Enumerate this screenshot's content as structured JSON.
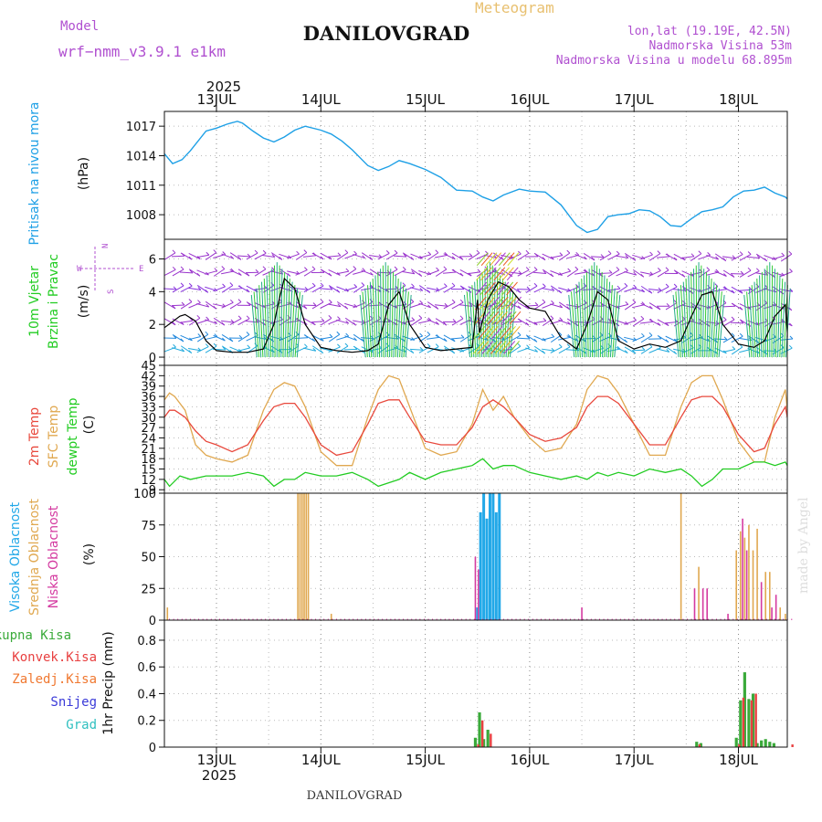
{
  "header": {
    "model_label": "Model",
    "model_name": "wrf−nmm_v3.9.1 e1km",
    "product": "Meteogram",
    "station": "DANILOVGRAD",
    "lonlat": "lon,lat (19.19E, 42.5N)",
    "elevation": "Nadmorska Visina 53m",
    "model_elevation": "Nadmorska Visina u modelu 68.895m",
    "year_top": "2025",
    "year_bottom": "2025",
    "footer_station": "DANILOVGRAD",
    "watermark": "made by Angel"
  },
  "colors": {
    "pressure": "#1ea0e6",
    "t2m": "#e8483c",
    "sfc": "#e0a850",
    "dewpt": "#22cc22",
    "high_cloud": "#22a8e8",
    "mid_cloud": "#e0a850",
    "low_cloud": "#d43aa0",
    "total_precip": "#3aaa3a",
    "conv_precip": "#e84040",
    "frozen_precip": "#f07830",
    "snow": "#3a3ad8",
    "hail": "#30c0c0",
    "wind_speed": "#000000",
    "wind_gust": "#e84040"
  },
  "panel_labels": {
    "pressure": [
      "Pritisak na nivou mora",
      "(hPa)"
    ],
    "wind": [
      "10m Vjetar",
      "Brzina i Pravac",
      "(m/s)"
    ],
    "temp": [
      "2m Temp",
      "SFC Temp",
      "dewpt Temp",
      "(C)"
    ],
    "cloud": [
      "Visoka Oblacnost",
      "Srednja Oblacnost",
      "Niska Oblacnost",
      "(%)"
    ],
    "precip_unit": "1hr Precip (mm)",
    "precip_legend": [
      "Ukupna Kisa",
      "Konvek.Kisa",
      "Zaledj.Kisa",
      "Snijeg",
      "Grad"
    ]
  },
  "compass": {
    "n": "N",
    "s": "S",
    "e": "E",
    "w": "W"
  },
  "chart_data": [
    {
      "type": "line",
      "panel": "pressure",
      "ylabel": "(hPa)",
      "y_ticks": [
        1008,
        1011,
        1014,
        1017
      ],
      "ylim": [
        1005.5,
        1018.5
      ],
      "x_labels": [
        "13JUL",
        "14JUL",
        "15JUL",
        "16JUL",
        "17JUL",
        "18JUL"
      ],
      "x_range_days": [
        -0.5,
        5.55
      ],
      "series": [
        {
          "name": "Pritisak na nivou mora",
          "x": [
            -0.5,
            -0.42,
            -0.33,
            -0.25,
            -0.1,
            0,
            0.1,
            0.2,
            0.25,
            0.35,
            0.45,
            0.55,
            0.65,
            0.75,
            0.85,
            1,
            1.1,
            1.2,
            1.3,
            1.45,
            1.55,
            1.65,
            1.75,
            1.85,
            2,
            2.15,
            2.3,
            2.45,
            2.55,
            2.65,
            2.75,
            2.9,
            3,
            3.15,
            3.3,
            3.45,
            3.55,
            3.65,
            3.75,
            3.85,
            3.95,
            4.05,
            4.15,
            4.25,
            4.35,
            4.45,
            4.55,
            4.65,
            4.75,
            4.85,
            4.95,
            5.05,
            5.15,
            5.25,
            5.35,
            5.45,
            5.55
          ],
          "y": [
            1014.2,
            1013.2,
            1013.6,
            1014.5,
            1016.5,
            1016.8,
            1017.2,
            1017.5,
            1017.3,
            1016.5,
            1015.8,
            1015.4,
            1015.9,
            1016.6,
            1017,
            1016.6,
            1016.2,
            1015.5,
            1014.6,
            1013,
            1012.5,
            1012.9,
            1013.5,
            1013.2,
            1012.6,
            1011.8,
            1010.5,
            1010.4,
            1009.8,
            1009.4,
            1010,
            1010.6,
            1010.4,
            1010.3,
            1009,
            1006.9,
            1006.2,
            1006.5,
            1007.8,
            1008,
            1008.1,
            1008.5,
            1008.4,
            1007.8,
            1006.9,
            1006.8,
            1007.6,
            1008.3,
            1008.5,
            1008.8,
            1009.8,
            1010.4,
            1010.5,
            1010.8,
            1010.2,
            1009.8,
            1009.6
          ]
        }
      ]
    },
    {
      "type": "line",
      "panel": "wind",
      "ylabel": "(m/s)",
      "y_ticks": [
        0,
        2,
        4,
        6
      ],
      "ylim": [
        -0.5,
        7.2
      ],
      "series": [
        {
          "name": "10m Vjetar Brzina",
          "x": [
            -0.5,
            -0.35,
            -0.3,
            -0.2,
            -0.1,
            0,
            0.15,
            0.3,
            0.45,
            0.55,
            0.6,
            0.65,
            0.75,
            0.85,
            1,
            1.15,
            1.3,
            1.45,
            1.55,
            1.65,
            1.75,
            1.85,
            2,
            2.15,
            2.3,
            2.45,
            2.5,
            2.52,
            2.6,
            2.7,
            2.8,
            2.9,
            3,
            3.15,
            3.3,
            3.45,
            3.55,
            3.65,
            3.75,
            3.85,
            4,
            4.15,
            4.3,
            4.45,
            4.55,
            4.65,
            4.75,
            4.85,
            5,
            5.15,
            5.25,
            5.35,
            5.45,
            5.5,
            5.55
          ],
          "y": [
            1.8,
            2.5,
            2.6,
            2.2,
            1,
            0.4,
            0.3,
            0.3,
            0.5,
            2,
            3.5,
            4.8,
            4.2,
            2,
            0.6,
            0.4,
            0.3,
            0.4,
            0.8,
            3.2,
            4,
            2,
            0.6,
            0.4,
            0.5,
            0.6,
            3.5,
            1.5,
            3.5,
            4.6,
            4.3,
            3.5,
            3,
            2.8,
            1.2,
            0.5,
            2,
            4,
            3.5,
            1,
            0.5,
            0.8,
            0.6,
            1,
            2.5,
            3.8,
            4,
            2,
            0.8,
            0.6,
            1,
            2.5,
            3.2,
            1.5,
            1.2
          ]
        }
      ],
      "legend": [
        "N",
        "S",
        "E",
        "W"
      ]
    },
    {
      "type": "line",
      "panel": "temp",
      "ylabel": "(C)",
      "y_ticks": [
        9,
        12,
        15,
        18,
        21,
        24,
        27,
        30,
        33,
        36,
        39,
        42,
        45
      ],
      "ylim": [
        8,
        45
      ],
      "series": [
        {
          "name": "2m Temp",
          "x": [
            -0.5,
            -0.45,
            -0.4,
            -0.3,
            -0.2,
            -0.1,
            0,
            0.15,
            0.3,
            0.45,
            0.55,
            0.65,
            0.75,
            0.85,
            1,
            1.15,
            1.3,
            1.45,
            1.55,
            1.65,
            1.75,
            1.85,
            2,
            2.15,
            2.3,
            2.45,
            2.55,
            2.65,
            2.75,
            2.85,
            3,
            3.15,
            3.3,
            3.45,
            3.55,
            3.65,
            3.75,
            3.85,
            4,
            4.15,
            4.3,
            4.45,
            4.55,
            4.65,
            4.75,
            4.85,
            5,
            5.15,
            5.25,
            5.35,
            5.45,
            5.55
          ],
          "y": [
            30,
            32,
            32,
            30,
            26,
            23,
            22,
            20,
            22,
            29,
            33,
            34,
            34,
            30,
            22,
            19,
            20,
            28,
            34,
            35,
            35,
            30,
            23,
            22,
            22,
            27,
            33,
            35,
            33,
            30,
            25,
            23,
            24,
            27,
            33,
            36,
            36,
            34,
            28,
            22,
            22,
            30,
            35,
            36,
            36,
            33,
            25,
            20,
            21,
            28,
            33,
            30
          ]
        },
        {
          "name": "SFC Temp",
          "x": [
            -0.5,
            -0.45,
            -0.4,
            -0.3,
            -0.2,
            -0.1,
            0,
            0.15,
            0.3,
            0.45,
            0.55,
            0.65,
            0.75,
            0.85,
            1,
            1.15,
            1.3,
            1.45,
            1.55,
            1.65,
            1.75,
            1.85,
            2,
            2.15,
            2.3,
            2.45,
            2.55,
            2.65,
            2.75,
            2.85,
            3,
            3.15,
            3.3,
            3.45,
            3.55,
            3.65,
            3.75,
            3.85,
            4,
            4.15,
            4.3,
            4.45,
            4.55,
            4.65,
            4.75,
            4.85,
            5,
            5.15,
            5.25,
            5.35,
            5.45,
            5.55
          ],
          "y": [
            35,
            37,
            36,
            32,
            22,
            19,
            18,
            17,
            19,
            32,
            38,
            40,
            39,
            33,
            20,
            16,
            16,
            30,
            38,
            42,
            41,
            33,
            21,
            19,
            20,
            28,
            38,
            32,
            36,
            30,
            24,
            20,
            21,
            28,
            38,
            42,
            41,
            37,
            28,
            19,
            19,
            33,
            40,
            42,
            42,
            35,
            23,
            17,
            17,
            30,
            38,
            32
          ]
        },
        {
          "name": "dewpt Temp",
          "x": [
            -0.5,
            -0.45,
            -0.35,
            -0.25,
            -0.1,
            0,
            0.15,
            0.3,
            0.45,
            0.55,
            0.65,
            0.75,
            0.85,
            1,
            1.15,
            1.3,
            1.45,
            1.55,
            1.65,
            1.75,
            1.85,
            2,
            2.15,
            2.3,
            2.45,
            2.55,
            2.65,
            2.75,
            2.85,
            3,
            3.15,
            3.3,
            3.45,
            3.55,
            3.65,
            3.75,
            3.85,
            4,
            4.15,
            4.3,
            4.45,
            4.55,
            4.65,
            4.75,
            4.85,
            5,
            5.15,
            5.25,
            5.35,
            5.45,
            5.55
          ],
          "y": [
            12,
            10,
            13,
            12,
            13,
            13,
            13,
            14,
            13,
            10,
            12,
            12,
            14,
            13,
            13,
            14,
            12,
            10,
            11,
            12,
            14,
            12,
            14,
            15,
            16,
            18,
            15,
            16,
            16,
            14,
            13,
            12,
            13,
            12,
            14,
            13,
            14,
            13,
            15,
            14,
            15,
            13,
            10,
            12,
            15,
            15,
            17,
            17,
            16,
            17,
            16
          ]
        }
      ]
    },
    {
      "type": "bar",
      "panel": "cloud",
      "ylabel": "(%)",
      "y_ticks": [
        0,
        25,
        50,
        75,
        100
      ],
      "ylim": [
        0,
        100
      ],
      "series": [
        {
          "name": "Visoka Oblacnost",
          "x": [
            2.5,
            2.53,
            2.56,
            2.59,
            2.62,
            2.65,
            2.68,
            2.71
          ],
          "values": [
            10,
            85,
            100,
            80,
            100,
            100,
            85,
            100
          ]
        },
        {
          "name": "Srednja Oblacnost",
          "x": [
            -0.47,
            0.78,
            0.8,
            0.82,
            0.84,
            0.86,
            0.88,
            1.1,
            4.45,
            4.62,
            4.98,
            5.02,
            5.06,
            5.1,
            5.14,
            5.18,
            5.26,
            5.3,
            5.4,
            5.45
          ],
          "values": [
            10,
            100,
            100,
            100,
            100,
            100,
            100,
            5,
            100,
            42,
            55,
            70,
            65,
            75,
            55,
            72,
            38,
            38,
            10,
            5
          ]
        },
        {
          "name": "Niska Oblacnost",
          "x": [
            2.48,
            2.51,
            3.5,
            4.58,
            4.66,
            4.7,
            4.9,
            5.04,
            5.08,
            5.22,
            5.32,
            5.36
          ],
          "values": [
            50,
            40,
            10,
            25,
            25,
            25,
            5,
            80,
            55,
            30,
            10,
            20
          ]
        }
      ]
    },
    {
      "type": "bar",
      "panel": "precip",
      "ylabel": "1hr Precip (mm)",
      "y_ticks": [
        0,
        0.2,
        0.4,
        0.6,
        0.8
      ],
      "ylim": [
        0,
        0.95
      ],
      "series": [
        {
          "name": "Ukupna Kisa",
          "x": [
            2.48,
            2.52,
            2.56,
            2.6,
            4.6,
            4.64,
            4.98,
            5.02,
            5.06,
            5.1,
            5.14,
            5.18,
            5.22,
            5.26,
            5.3,
            5.34
          ],
          "values": [
            0.07,
            0.26,
            0.06,
            0.13,
            0.04,
            0.03,
            0.07,
            0.35,
            0.56,
            0.36,
            0.4,
            0.03,
            0.05,
            0.06,
            0.04,
            0.03
          ]
        },
        {
          "name": "Konvek.Kisa",
          "x": [
            2.49,
            2.53,
            2.61,
            4.61,
            4.99,
            5.03,
            5.11,
            5.15,
            5.5
          ],
          "values": [
            0.02,
            0.2,
            0.1,
            0.02,
            0.02,
            0.37,
            0.35,
            0.4,
            0.02
          ]
        }
      ]
    }
  ]
}
